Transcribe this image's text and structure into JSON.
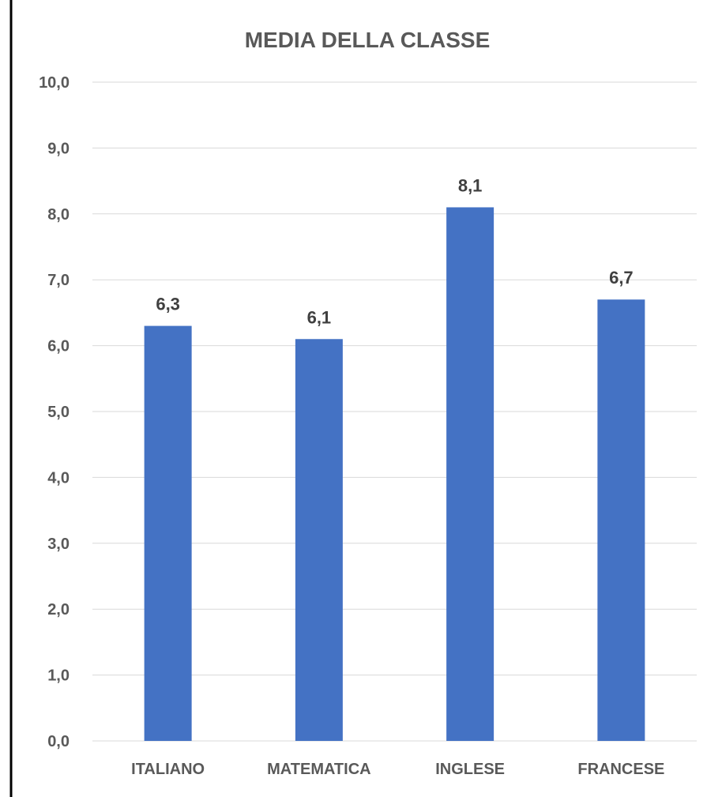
{
  "chart_data": {
    "type": "bar",
    "title": "MEDIA DELLA CLASSE",
    "xlabel": "",
    "ylabel": "",
    "categories": [
      "ITALIANO",
      "MATEMATICA",
      "INGLESE",
      "FRANCESE"
    ],
    "values": [
      6.3,
      6.1,
      8.1,
      6.7
    ],
    "value_labels": [
      "6,3",
      "6,1",
      "8,1",
      "6,7"
    ],
    "ylim": [
      0,
      10
    ],
    "yticks": [
      0,
      1,
      2,
      3,
      4,
      5,
      6,
      7,
      8,
      9,
      10
    ],
    "ytick_labels": [
      "0,0",
      "1,0",
      "2,0",
      "3,0",
      "4,0",
      "5,0",
      "6,0",
      "7,0",
      "8,0",
      "9,0",
      "10,0"
    ],
    "grid": true,
    "legend": "none",
    "colors": {
      "bar": "#4472c4",
      "gridline": "#d9d9d9",
      "text": "#595959",
      "data_label": "#404040",
      "frame": "#000000"
    }
  }
}
